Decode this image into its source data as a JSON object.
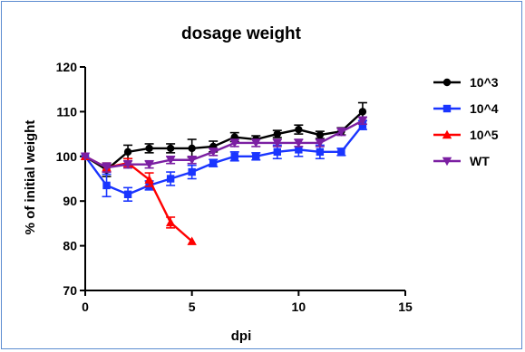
{
  "chart_data": {
    "type": "line",
    "title": "dosage weight",
    "xlabel": "dpi",
    "ylabel": "% of initial weight",
    "xlim": [
      0,
      15
    ],
    "ylim": [
      70,
      120
    ],
    "xticks": [
      0,
      5,
      10,
      15
    ],
    "yticks": [
      70,
      80,
      90,
      100,
      110,
      120
    ],
    "grid": false,
    "legend_position": "right",
    "series": [
      {
        "name": "10^3",
        "color": "#000000",
        "marker": "circle",
        "x": [
          0,
          1,
          2,
          3,
          4,
          5,
          6,
          7,
          8,
          9,
          10,
          11,
          12,
          13
        ],
        "y": [
          100,
          97,
          101,
          101.8,
          101.8,
          101.8,
          102.2,
          104.3,
          103.8,
          105,
          106,
          104.8,
          105.6,
          110
        ],
        "err": [
          0,
          1.5,
          1.5,
          1,
          1,
          2,
          1.2,
          1,
          0.8,
          0.8,
          1,
          0.8,
          0.8,
          2
        ]
      },
      {
        "name": "10^4",
        "color": "#1a35ff",
        "marker": "square",
        "x": [
          0,
          1,
          2,
          3,
          4,
          5,
          6,
          7,
          8,
          9,
          10,
          11,
          12,
          13
        ],
        "y": [
          100,
          93.5,
          91.5,
          93.5,
          95,
          96.5,
          98.5,
          100,
          100,
          101,
          101.5,
          101,
          101,
          107
        ],
        "err": [
          0,
          2.5,
          1.5,
          1,
          1.5,
          1.5,
          0.8,
          1,
          0.8,
          1.5,
          1.5,
          1.5,
          0.8,
          1
        ]
      },
      {
        "name": "10^5",
        "color": "#ff0000",
        "marker": "triangle",
        "x": [
          0,
          1,
          2,
          3,
          4,
          5
        ],
        "y": [
          100,
          97.5,
          98.5,
          94.8,
          85.2,
          81
        ],
        "err": [
          0,
          1,
          1,
          1.5,
          1.2,
          0
        ]
      },
      {
        "name": "WT",
        "color": "#7b1fa2",
        "marker": "triangle-down",
        "x": [
          0,
          1,
          2,
          3,
          4,
          5,
          6,
          7,
          8,
          9,
          10,
          11,
          12,
          13
        ],
        "y": [
          100,
          97.5,
          98.2,
          98.2,
          99.2,
          99.2,
          101,
          103,
          103,
          103,
          103,
          103,
          105.5,
          108
        ],
        "err": [
          0,
          1,
          0.8,
          0.8,
          0.8,
          0.8,
          0.8,
          0.8,
          0.8,
          0.8,
          0.8,
          0.8,
          0.8,
          0.8
        ]
      }
    ]
  }
}
